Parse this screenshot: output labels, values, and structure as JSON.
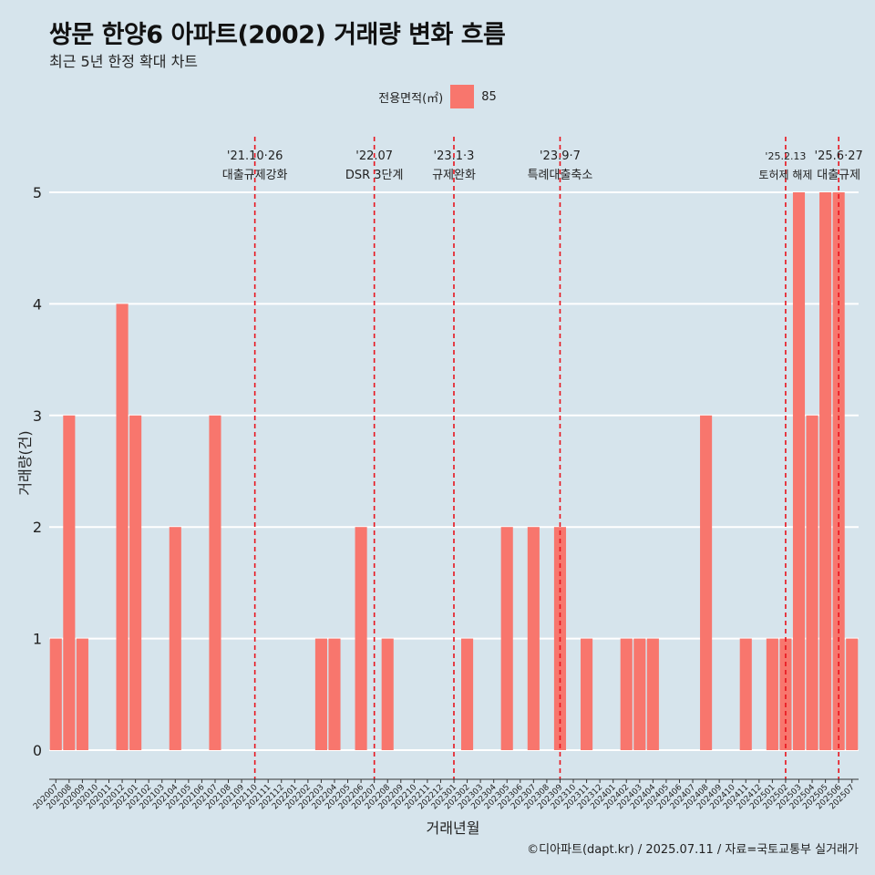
{
  "title": "쌍문 한양6 아파트(2002) 거래량 변화 흐름",
  "subtitle": "최근 5년 한정 확대 차트",
  "caption": "©디아파트(dapt.kr) / 2025.07.11 / 자료=국토교통부 실거래가",
  "legend": {
    "title": "전용면적(㎡)",
    "label": "85"
  },
  "colors": {
    "bar": "#f8766d",
    "event": "#e8141d",
    "background": "#d6e4ec",
    "grid": "#ffffff"
  },
  "chart_data": {
    "type": "bar",
    "xlabel": "거래년월",
    "ylabel": "거래량(건)",
    "ylim": [
      0,
      5
    ],
    "yticks": [
      0,
      1,
      2,
      3,
      4,
      5
    ],
    "grid": true,
    "legend_position": "top",
    "categories": [
      "202007",
      "202008",
      "202009",
      "202010",
      "202011",
      "202012",
      "202101",
      "202102",
      "202103",
      "202104",
      "202105",
      "202106",
      "202107",
      "202108",
      "202109",
      "202110",
      "202111",
      "202112",
      "202201",
      "202202",
      "202203",
      "202204",
      "202205",
      "202206",
      "202207",
      "202208",
      "202209",
      "202210",
      "202211",
      "202212",
      "202301",
      "202302",
      "202303",
      "202304",
      "202305",
      "202306",
      "202307",
      "202308",
      "202309",
      "202310",
      "202311",
      "202312",
      "202401",
      "202402",
      "202403",
      "202404",
      "202405",
      "202406",
      "202407",
      "202408",
      "202409",
      "202410",
      "202411",
      "202412",
      "202501",
      "202502",
      "202503",
      "202504",
      "202505",
      "202506",
      "202507"
    ],
    "series": [
      {
        "name": "85",
        "values": [
          1,
          3,
          1,
          0,
          0,
          4,
          3,
          0,
          0,
          2,
          0,
          0,
          3,
          0,
          0,
          0,
          0,
          0,
          0,
          0,
          1,
          1,
          0,
          2,
          0,
          1,
          0,
          0,
          0,
          0,
          0,
          1,
          0,
          0,
          2,
          0,
          2,
          0,
          2,
          0,
          1,
          0,
          0,
          1,
          1,
          1,
          0,
          0,
          0,
          3,
          0,
          0,
          1,
          0,
          1,
          1,
          5,
          3,
          5,
          5,
          1
        ]
      }
    ],
    "annotations": [
      {
        "x": "202110",
        "date": "'21.10·26",
        "label": "대출규제강화"
      },
      {
        "x": "202207",
        "date": "'22.07",
        "label": "DSR 3단계"
      },
      {
        "x": "202301",
        "date": "'23.1·3",
        "label": "규제완화"
      },
      {
        "x": "202309",
        "date": "'23.9·7",
        "label": "특례대출축소"
      },
      {
        "x": "202502",
        "date": "'25.2.13",
        "label": "토허제 해제"
      },
      {
        "x": "202506",
        "date": "'25.6·27",
        "label": "대출규제"
      }
    ]
  }
}
